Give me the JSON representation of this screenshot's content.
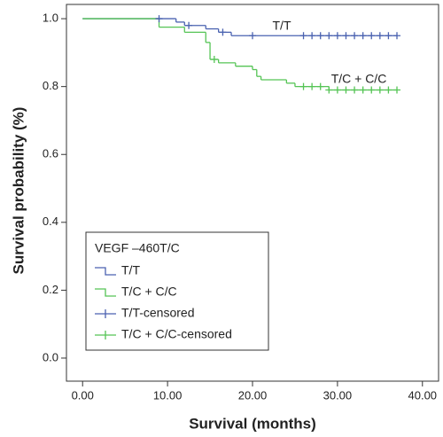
{
  "chart_data": {
    "type": "survival",
    "x_label": "Survival (months)",
    "y_label": "Survival probability (%)",
    "xlim": [
      -1.9,
      41.9
    ],
    "ylim": [
      -0.068,
      1.042
    ],
    "xticks": [
      {
        "value": 0,
        "label": "0.00"
      },
      {
        "value": 10,
        "label": "10.00"
      },
      {
        "value": 20,
        "label": "20.00"
      },
      {
        "value": 30,
        "label": "30.00"
      },
      {
        "value": 40,
        "label": "40.00"
      }
    ],
    "yticks": [
      {
        "value": 0,
        "label": "0.0"
      },
      {
        "value": 0.2,
        "label": "0.2"
      },
      {
        "value": 0.4,
        "label": "0.4"
      },
      {
        "value": 0.6,
        "label": "0.6"
      },
      {
        "value": 0.8,
        "label": "0.8"
      },
      {
        "value": 1,
        "label": "1.0"
      }
    ],
    "legend_title": "VEGF –460T/C",
    "legend_position": "lower left",
    "annotations": [
      "T/T",
      "T/C + C/C"
    ],
    "series": [
      {
        "name": "T/T",
        "color": "#4a62b0",
        "style": "step",
        "x": [
          0,
          11,
          12,
          14.5,
          16,
          17.5,
          37
        ],
        "values": [
          1.0,
          0.99,
          0.98,
          0.97,
          0.96,
          0.95,
          0.95
        ]
      },
      {
        "name": "T/C + C/C",
        "color": "#55c455",
        "style": "step",
        "x": [
          0,
          9,
          12,
          14.5,
          15,
          16,
          18,
          20,
          20.5,
          21,
          24,
          25,
          29,
          37
        ],
        "values": [
          1.0,
          0.975,
          0.96,
          0.93,
          0.88,
          0.87,
          0.86,
          0.85,
          0.83,
          0.82,
          0.81,
          0.8,
          0.79,
          0.79
        ]
      },
      {
        "name": "T/T-censored",
        "color": "#4a62b0",
        "style": "censored",
        "x": [
          9,
          12.5,
          16.5,
          20,
          26,
          27,
          28,
          29,
          30,
          31,
          32,
          33,
          34,
          35,
          36,
          37
        ],
        "values": [
          1.0,
          0.98,
          0.96,
          0.95,
          0.95,
          0.95,
          0.95,
          0.95,
          0.95,
          0.95,
          0.95,
          0.95,
          0.95,
          0.95,
          0.95,
          0.95
        ]
      },
      {
        "name": "T/C + C/C-censored",
        "color": "#55c455",
        "style": "censored",
        "x": [
          15.5,
          26,
          27,
          28,
          29,
          30,
          31,
          32,
          33,
          34,
          35,
          36,
          37
        ],
        "values": [
          0.88,
          0.8,
          0.8,
          0.8,
          0.79,
          0.79,
          0.79,
          0.79,
          0.79,
          0.79,
          0.79,
          0.79,
          0.79
        ]
      }
    ]
  }
}
